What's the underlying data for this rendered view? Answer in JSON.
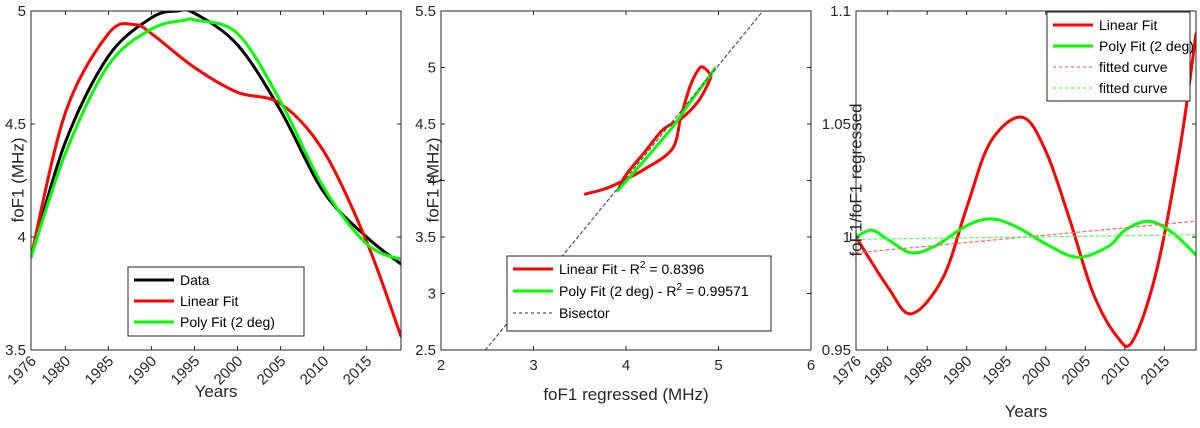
{
  "chart_data": [
    {
      "type": "line",
      "xlabel": "Years",
      "ylabel": "foF1 (MHz)",
      "xlim": [
        1976,
        2019
      ],
      "ylim": [
        3.5,
        5
      ],
      "xticks": [
        "1976",
        "1980",
        "1985",
        "1990",
        "1995",
        "2000",
        "2005",
        "2010",
        "2015"
      ],
      "yticks": [
        "3.5",
        "4",
        "4.5",
        "5"
      ],
      "grid": false,
      "legend_position": "bottom-center",
      "series": [
        {
          "name": "Data",
          "color": "#000000",
          "x": [
            1976,
            1980,
            1985,
            1990,
            1993,
            1995,
            2000,
            2005,
            2010,
            2015,
            2019
          ],
          "y": [
            3.91,
            4.42,
            4.8,
            4.97,
            5.0,
            4.99,
            4.85,
            4.56,
            4.2,
            4.0,
            3.88
          ]
        },
        {
          "name": "Linear Fit",
          "color": "#ff0000",
          "x": [
            1976,
            1980,
            1985,
            1988,
            1990,
            1995,
            2000,
            2005,
            2010,
            2015,
            2019
          ],
          "y": [
            3.91,
            4.55,
            4.9,
            4.94,
            4.9,
            4.75,
            4.64,
            4.59,
            4.38,
            3.98,
            3.56
          ]
        },
        {
          "name": "Poly Fit (2 deg)",
          "color": "#00ff00",
          "x": [
            1976,
            1980,
            1985,
            1990,
            1994,
            1995,
            2000,
            2005,
            2010,
            2015,
            2019
          ],
          "y": [
            3.91,
            4.37,
            4.76,
            4.92,
            4.96,
            4.96,
            4.9,
            4.6,
            4.22,
            3.97,
            3.9
          ]
        }
      ]
    },
    {
      "type": "line",
      "xlabel": "foF1 regressed (MHz)",
      "ylabel": "foF1 (MHz)",
      "xlim": [
        2,
        6
      ],
      "ylim": [
        2.5,
        5.5
      ],
      "xticks": [
        "2",
        "3",
        "4",
        "5",
        "6"
      ],
      "yticks": [
        "2.5",
        "3",
        "3.5",
        "4",
        "4.5",
        "5",
        "5.5"
      ],
      "grid": false,
      "legend_position": "bottom-right",
      "series": [
        {
          "name": "Linear Fit - R",
          "sup": "2",
          "value_label": " = 0.8396",
          "color": "#ff0000",
          "dashed": false,
          "x": [
            3.56,
            3.75,
            3.9,
            4.2,
            4.5,
            4.59,
            4.62,
            4.7,
            4.79,
            4.84,
            4.9,
            4.91,
            4.78,
            4.6,
            4.4,
            4.2,
            4.0,
            3.91
          ],
          "y": [
            3.88,
            3.92,
            3.97,
            4.1,
            4.28,
            4.56,
            4.64,
            4.85,
            4.99,
            5.0,
            4.95,
            4.9,
            4.7,
            4.55,
            4.45,
            4.25,
            4.05,
            3.91
          ]
        },
        {
          "name": "Poly Fit (2 deg) - R",
          "sup": "2",
          "value_label": " = 0.99571",
          "color": "#00ff00",
          "dashed": false,
          "x": [
            3.91,
            4.2,
            4.5,
            4.7,
            4.9,
            4.96
          ],
          "y": [
            3.91,
            4.18,
            4.47,
            4.7,
            4.92,
            4.99
          ]
        },
        {
          "name": "Bisector",
          "color": "#555555",
          "dashed": true,
          "x": [
            2.48,
            5.53
          ],
          "y": [
            2.5,
            5.55
          ]
        }
      ]
    },
    {
      "type": "line",
      "xlabel": "Years",
      "ylabel": "foF1/foF1 regressed",
      "xlim": [
        1976,
        2019
      ],
      "ylim": [
        0.95,
        1.1
      ],
      "xticks": [
        "1976",
        "1980",
        "1985",
        "1990",
        "1995",
        "2000",
        "2005",
        "2010",
        "2015"
      ],
      "yticks": [
        "0.95",
        "1",
        "1.05",
        "1.1"
      ],
      "grid": false,
      "legend_position": "top-right",
      "series": [
        {
          "name": "Linear Fit",
          "color": "#ff0000",
          "dashed": false,
          "x": [
            1976,
            1980,
            1983,
            1987,
            1990,
            1993,
            1997,
            2000,
            2003,
            2006,
            2009,
            2011,
            2014,
            2017,
            2019
          ],
          "y": [
            1.0,
            0.978,
            0.966,
            0.982,
            1.013,
            1.042,
            1.053,
            1.038,
            1.008,
            0.975,
            0.956,
            0.954,
            0.985,
            1.04,
            1.09
          ]
        },
        {
          "name": "Poly Fit (2 deg)",
          "color": "#00ff00",
          "dashed": false,
          "x": [
            1976,
            1978,
            1980,
            1983,
            1986,
            1990,
            1993,
            1996,
            2000,
            2004,
            2008,
            2010,
            2013,
            2016,
            2019
          ],
          "y": [
            1.0,
            1.003,
            0.999,
            0.993,
            0.996,
            1.005,
            1.008,
            1.005,
            0.997,
            0.991,
            0.996,
            1.003,
            1.007,
            1.002,
            0.992
          ]
        },
        {
          "name": "fitted curve",
          "color": "#ff6666",
          "dashed": true,
          "x": [
            1976,
            2019
          ],
          "y": [
            0.993,
            1.007
          ]
        },
        {
          "name": "fitted curve",
          "color": "#66ee66",
          "dashed": true,
          "x": [
            1976,
            2019
          ],
          "y": [
            0.999,
            1.001
          ]
        }
      ]
    }
  ]
}
